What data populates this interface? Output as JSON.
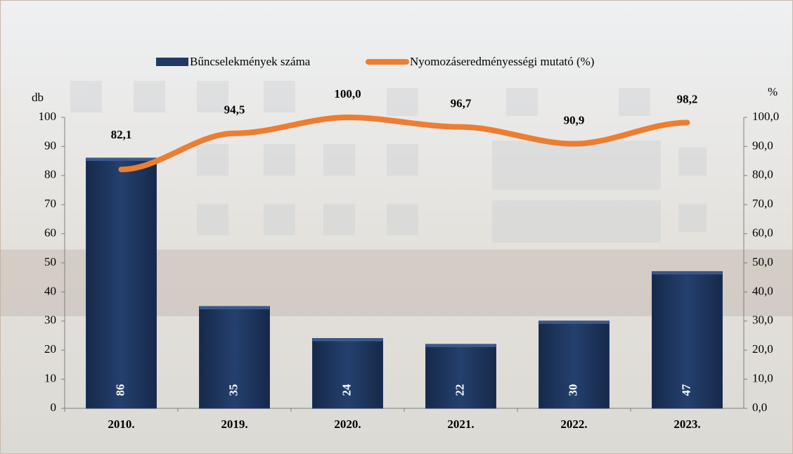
{
  "chart_data": {
    "type": "bar",
    "categories": [
      "2010.",
      "2019.",
      "2020.",
      "2021.",
      "2022.",
      "2023."
    ],
    "series": [
      {
        "name": "Bűncselekmények száma",
        "type": "bar",
        "color": "#1f3864",
        "values": [
          86,
          35,
          24,
          22,
          30,
          47
        ]
      },
      {
        "name": "Nyomozáseredményességi mutató (%)",
        "type": "line",
        "axis": "y2",
        "color": "#ed7d31",
        "values": [
          82.1,
          94.5,
          100.0,
          96.7,
          90.9,
          98.2
        ],
        "value_labels": [
          "82,1",
          "94,5",
          "100,0",
          "96,7",
          "90,9",
          "98,2"
        ]
      }
    ],
    "ylabel": "db",
    "y2label": "%",
    "ylim": [
      0,
      100
    ],
    "yticks": [
      0,
      10,
      20,
      30,
      40,
      50,
      60,
      70,
      80,
      90,
      100
    ],
    "y2lim": [
      0,
      100
    ],
    "y2ticks": [
      {
        "value": 0,
        "label": "0,0"
      },
      {
        "value": 10,
        "label": "10,0"
      },
      {
        "value": 20,
        "label": "20,0"
      },
      {
        "value": 30,
        "label": "30,0"
      },
      {
        "value": 40,
        "label": "40,0"
      },
      {
        "value": 50,
        "label": "50,0"
      },
      {
        "value": 60,
        "label": "60,0"
      },
      {
        "value": 70,
        "label": "70,0"
      },
      {
        "value": 80,
        "label": "80,0"
      },
      {
        "value": 90,
        "label": "90,0"
      },
      {
        "value": 100,
        "label": "100,0"
      }
    ],
    "grid": false,
    "legend": "top"
  }
}
